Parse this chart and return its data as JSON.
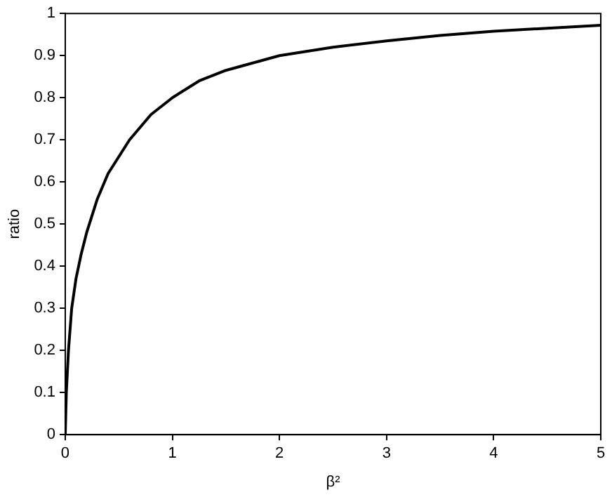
{
  "chart_data": {
    "type": "line",
    "xlabel": "β²",
    "ylabel": "ratio",
    "x": [
      0,
      0.01,
      0.03,
      0.06,
      0.1,
      0.15,
      0.2,
      0.3,
      0.4,
      0.5,
      0.6,
      0.8,
      1,
      1.25,
      1.5,
      2,
      2.5,
      3,
      3.5,
      4,
      4.5,
      5
    ],
    "series": [
      {
        "color": "#000000",
        "values": [
          0,
          0.1,
          0.2,
          0.3,
          0.37,
          0.43,
          0.48,
          0.56,
          0.62,
          0.66,
          0.7,
          0.76,
          0.8,
          0.84,
          0.865,
          0.9,
          0.92,
          0.935,
          0.948,
          0.958,
          0.965,
          0.972
        ]
      }
    ],
    "xlim": [
      0,
      5
    ],
    "xticks": [
      0,
      1,
      2,
      3,
      4,
      5
    ],
    "ylim": [
      0,
      1
    ],
    "yticks": [
      0,
      0.1,
      0.2,
      0.3,
      0.4,
      0.5,
      0.6,
      0.7,
      0.8,
      0.9,
      1
    ],
    "grid": false,
    "legend": false,
    "marker": "none",
    "line_style": "solid"
  }
}
